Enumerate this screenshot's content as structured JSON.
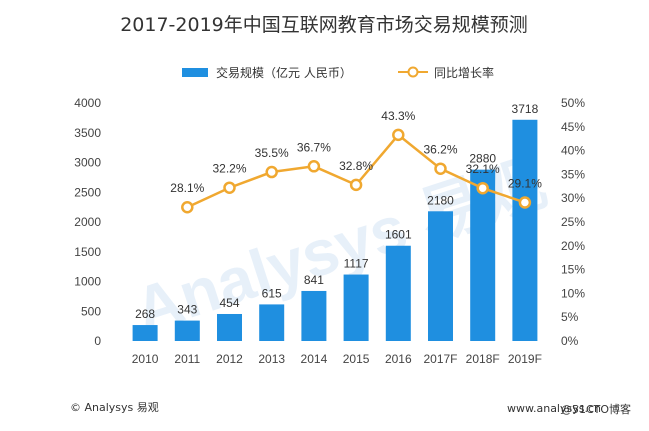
{
  "chart_data": {
    "type": "bar",
    "title": "2017-2019年中国互联网教育市场交易规模预测",
    "categories": [
      "2010",
      "2011",
      "2012",
      "2013",
      "2014",
      "2015",
      "2016",
      "2017F",
      "2018F",
      "2019F"
    ],
    "series": [
      {
        "name": "交易规模（亿元 人民币）",
        "type": "bar",
        "axis": "left",
        "color": "#1f8fe0",
        "values": [
          268,
          343,
          454,
          615,
          841,
          1117,
          1601,
          2180,
          2880,
          3718
        ],
        "labels": [
          "268",
          "343",
          "454",
          "615",
          "841",
          "1117",
          "1601",
          "2180",
          "2880",
          "3718"
        ]
      },
      {
        "name": "同比增长率",
        "type": "line",
        "axis": "right",
        "color": "#f0a830",
        "values": [
          null,
          28.1,
          32.2,
          35.5,
          36.7,
          32.8,
          43.3,
          36.2,
          32.1,
          29.1
        ],
        "labels": [
          "",
          "28.1%",
          "32.2%",
          "35.5%",
          "36.7%",
          "32.8%",
          "43.3%",
          "36.2%",
          "32.1%",
          "29.1%"
        ]
      }
    ],
    "y_left": {
      "min": 0,
      "max": 4000,
      "ticks": [
        "0",
        "500",
        "1000",
        "1500",
        "2000",
        "2500",
        "3000",
        "3500",
        "4000"
      ]
    },
    "y_right": {
      "min": 0,
      "max": 50,
      "ticks": [
        "0%",
        "5%",
        "10%",
        "15%",
        "20%",
        "25%",
        "30%",
        "35%",
        "40%",
        "45%",
        "50%"
      ]
    },
    "grid": false,
    "legend_position": "top"
  },
  "watermark": "Analysys 易观",
  "footer": {
    "left": "© Analysys 易观",
    "right": "www.analysys.cn",
    "overlay": "@51CTO博客"
  }
}
